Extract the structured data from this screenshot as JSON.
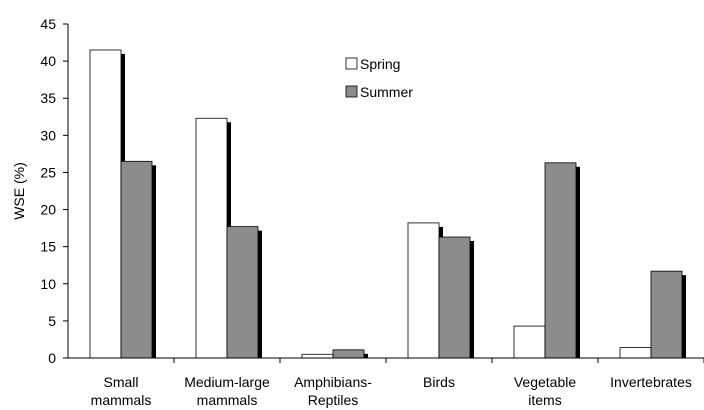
{
  "chart_data": {
    "type": "bar",
    "ylabel": "WSE (%)",
    "ylim": [
      0,
      45
    ],
    "yticks": [
      0,
      5,
      10,
      15,
      20,
      25,
      30,
      35,
      40,
      45
    ],
    "categories": [
      [
        "Small",
        "mammals"
      ],
      [
        "Medium-large",
        "mammals"
      ],
      [
        "Amphibians-",
        "Reptiles"
      ],
      [
        "Birds"
      ],
      [
        "Vegetable",
        "items"
      ],
      [
        "Invertebrates"
      ]
    ],
    "series": [
      {
        "name": "Spring",
        "values": [
          41.5,
          32.3,
          0.5,
          18.2,
          4.3,
          1.4
        ]
      },
      {
        "name": "Summer",
        "values": [
          26.5,
          17.7,
          1.1,
          16.3,
          26.3,
          11.7
        ]
      }
    ],
    "legend_position": "top-center",
    "grid": false
  },
  "colors": {
    "spring_fill": "#ffffff",
    "summer_fill": "#8c8c8c",
    "bar_stroke": "#000000",
    "shadow": "#000000"
  }
}
